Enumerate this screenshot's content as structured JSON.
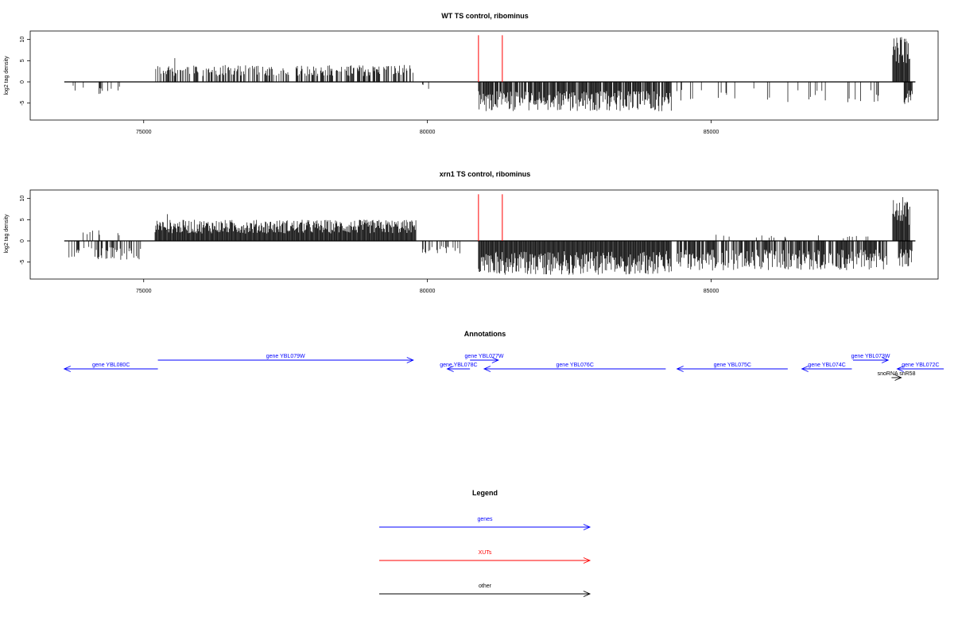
{
  "colors": {
    "genes": "#0000ff",
    "xuts": "#ff0000",
    "other": "#000000",
    "axis": "#000000"
  },
  "chart_data": [
    {
      "type": "bar",
      "title": "WT TS control, ribominus",
      "ylabel": "log2 tag density",
      "xlim": [
        73000,
        89000
      ],
      "ylim": [
        -9,
        12
      ],
      "xticks": [
        75000,
        80000,
        85000
      ],
      "yticks": [
        -5,
        0,
        5,
        10
      ],
      "xut_markers": [
        80900,
        81320
      ],
      "pos_segments": [
        {
          "start": 75200,
          "end": 79800,
          "max": 4,
          "peak": 5.6,
          "density": 0.55
        },
        {
          "start": 88200,
          "end": 88500,
          "max": 11,
          "peak": 11,
          "density": 1.0
        }
      ],
      "neg_segments": [
        {
          "start": 73600,
          "end": 74600,
          "max": -3,
          "density": 0.08
        },
        {
          "start": 79900,
          "end": 80100,
          "max": -2,
          "density": 0.1
        },
        {
          "start": 80900,
          "end": 84300,
          "max": -7,
          "density": 0.9
        },
        {
          "start": 84300,
          "end": 88000,
          "max": -5,
          "density": 0.1
        },
        {
          "start": 88400,
          "end": 88550,
          "max": -5.5,
          "density": 1.0
        }
      ]
    },
    {
      "type": "bar",
      "title": "xrn1 TS control, ribominus",
      "ylabel": "log2 tag density",
      "xlim": [
        73000,
        89000
      ],
      "ylim": [
        -9,
        12
      ],
      "xticks": [
        75000,
        80000,
        85000
      ],
      "yticks": [
        -5,
        0,
        5,
        10
      ],
      "xut_markers": [
        80900,
        81320
      ],
      "pos_segments": [
        {
          "start": 73800,
          "end": 74800,
          "max": 2.5,
          "peak": 2.5,
          "density": 0.06
        },
        {
          "start": 75200,
          "end": 79800,
          "max": 5,
          "peak": 6.3,
          "density": 1.0
        },
        {
          "start": 84800,
          "end": 88000,
          "max": 1.5,
          "peak": 1.5,
          "density": 0.05
        },
        {
          "start": 88200,
          "end": 88500,
          "max": 10.5,
          "peak": 10.5,
          "density": 1.0
        }
      ],
      "neg_segments": [
        {
          "start": 73600,
          "end": 75000,
          "max": -4.5,
          "density": 0.35
        },
        {
          "start": 79900,
          "end": 80600,
          "max": -3,
          "density": 0.2
        },
        {
          "start": 80900,
          "end": 84300,
          "max": -8,
          "density": 1.0
        },
        {
          "start": 84400,
          "end": 88100,
          "max": -7,
          "density": 0.75
        },
        {
          "start": 88300,
          "end": 88550,
          "max": -6.5,
          "density": 1.0
        }
      ]
    }
  ],
  "annotations": {
    "title": "Annotations",
    "features": [
      {
        "label": "gene YBL080C",
        "start": 73600,
        "end": 75250,
        "strand": "-",
        "type": "genes",
        "row": 1
      },
      {
        "label": "gene YBL079W",
        "start": 75250,
        "end": 79750,
        "strand": "+",
        "type": "genes",
        "row": 0
      },
      {
        "label": "gene YBL078C",
        "start": 80350,
        "end": 80750,
        "strand": "-",
        "type": "genes",
        "row": 1
      },
      {
        "label": "gene YBL077W",
        "start": 80750,
        "end": 81250,
        "strand": "+",
        "type": "genes",
        "row": 0
      },
      {
        "label": "gene YBL076C",
        "start": 81000,
        "end": 84200,
        "strand": "-",
        "type": "genes",
        "row": 1
      },
      {
        "label": "gene YBL075C",
        "start": 84400,
        "end": 86350,
        "strand": "-",
        "type": "genes",
        "row": 1
      },
      {
        "label": "gene YBL074C",
        "start": 86600,
        "end": 87480,
        "strand": "-",
        "type": "genes",
        "row": 1
      },
      {
        "label": "gene YBL073W",
        "start": 87500,
        "end": 88120,
        "strand": "+",
        "type": "genes",
        "row": 0
      },
      {
        "label": "gene YBL072C",
        "start": 88280,
        "end": 89100,
        "strand": "-",
        "type": "genes",
        "row": 1
      },
      {
        "label": "snoRNA snR58",
        "start": 88180,
        "end": 88350,
        "strand": "+",
        "type": "other",
        "row": 2
      }
    ]
  },
  "legend": {
    "title": "Legend",
    "items": [
      {
        "label": "genes",
        "type": "genes"
      },
      {
        "label": "XUTs",
        "type": "xuts"
      },
      {
        "label": "other",
        "type": "other"
      }
    ]
  }
}
